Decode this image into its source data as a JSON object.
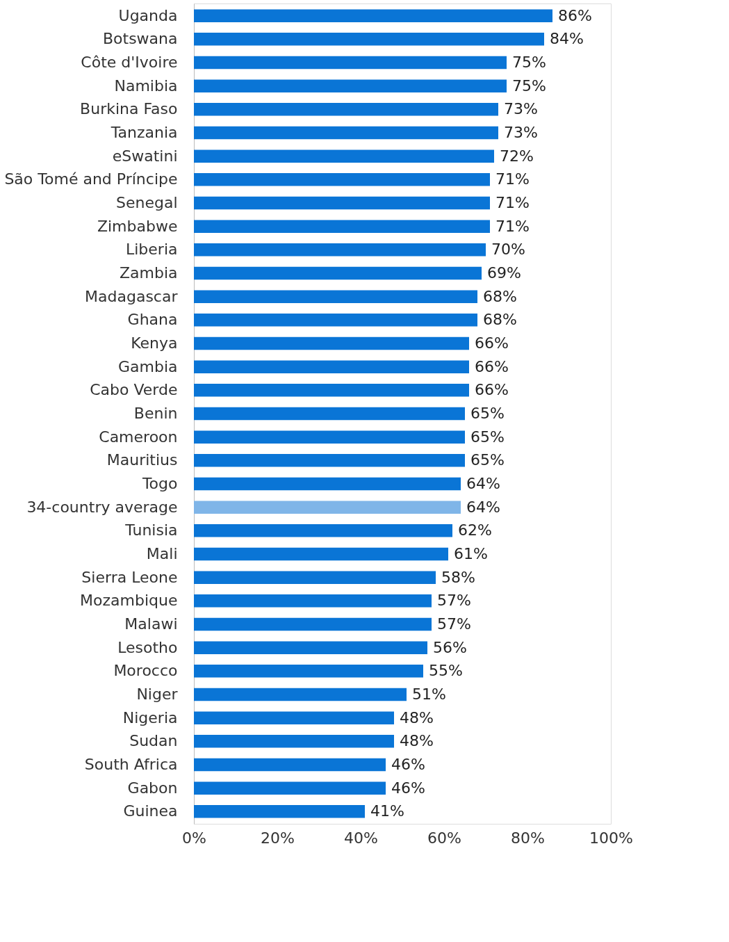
{
  "chart_data": {
    "type": "bar",
    "orientation": "horizontal",
    "categories": [
      "Uganda",
      "Botswana",
      "Côte d'Ivoire",
      "Namibia",
      "Burkina Faso",
      "Tanzania",
      "eSwatini",
      "São Tomé and Príncipe",
      "Senegal",
      "Zimbabwe",
      "Liberia",
      "Zambia",
      "Madagascar",
      "Ghana",
      "Kenya",
      "Gambia",
      "Cabo Verde",
      "Benin",
      "Cameroon",
      "Mauritius",
      "Togo",
      "34-country average",
      "Tunisia",
      "Mali",
      "Sierra Leone",
      "Mozambique",
      "Malawi",
      "Lesotho",
      "Morocco",
      "Niger",
      "Nigeria",
      "Sudan",
      "South Africa",
      "Gabon",
      "Guinea"
    ],
    "values": [
      86,
      84,
      75,
      75,
      73,
      73,
      72,
      71,
      71,
      71,
      70,
      69,
      68,
      68,
      66,
      66,
      66,
      65,
      65,
      65,
      64,
      64,
      62,
      61,
      58,
      57,
      57,
      56,
      55,
      51,
      48,
      48,
      46,
      46,
      41
    ],
    "value_labels": [
      "86%",
      "84%",
      "75%",
      "75%",
      "73%",
      "73%",
      "72%",
      "71%",
      "71%",
      "71%",
      "70%",
      "69%",
      "68%",
      "68%",
      "66%",
      "66%",
      "66%",
      "65%",
      "65%",
      "65%",
      "64%",
      "64%",
      "62%",
      "61%",
      "58%",
      "57%",
      "57%",
      "56%",
      "55%",
      "51%",
      "48%",
      "48%",
      "46%",
      "46%",
      "41%"
    ],
    "colors": [
      "#0a75d6",
      "#0a75d6",
      "#0a75d6",
      "#0a75d6",
      "#0a75d6",
      "#0a75d6",
      "#0a75d6",
      "#0a75d6",
      "#0a75d6",
      "#0a75d6",
      "#0a75d6",
      "#0a75d6",
      "#0a75d6",
      "#0a75d6",
      "#0a75d6",
      "#0a75d6",
      "#0a75d6",
      "#0a75d6",
      "#0a75d6",
      "#0a75d6",
      "#0a75d6",
      "#7fb5e8",
      "#0a75d6",
      "#0a75d6",
      "#0a75d6",
      "#0a75d6",
      "#0a75d6",
      "#0a75d6",
      "#0a75d6",
      "#0a75d6",
      "#0a75d6",
      "#0a75d6",
      "#0a75d6",
      "#0a75d6",
      "#0a75d6"
    ],
    "xlim": [
      0,
      100
    ],
    "xticks": [
      {
        "value": 0,
        "label": "0%"
      },
      {
        "value": 20,
        "label": "20%"
      },
      {
        "value": 40,
        "label": "40%"
      },
      {
        "value": 60,
        "label": "60%"
      },
      {
        "value": 80,
        "label": "80%"
      },
      {
        "value": 100,
        "label": "100%"
      }
    ]
  }
}
